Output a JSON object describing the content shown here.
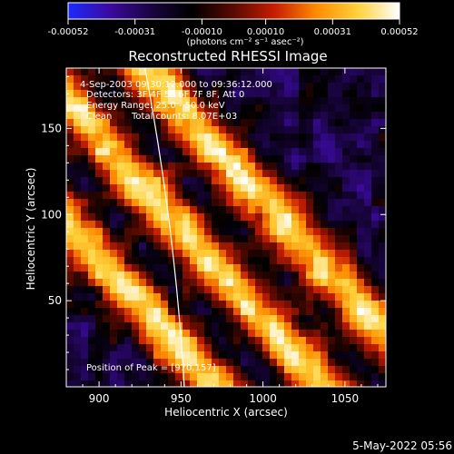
{
  "chart_data": {
    "type": "heatmap",
    "title": "Reconstructed RHESSI Image",
    "xlabel": "Heliocentric X (arcsec)",
    "ylabel": "Heliocentric Y (arcsec)",
    "xlim": [
      880,
      1075
    ],
    "ylim": [
      0,
      185
    ],
    "x_ticks": [
      "900",
      "950",
      "1000",
      "1050"
    ],
    "x_tick_values": [
      900,
      950,
      1000,
      1050
    ],
    "y_ticks": [
      "50",
      "100",
      "150"
    ],
    "y_tick_values": [
      50,
      100,
      150
    ],
    "colorbar": {
      "ticks": [
        "-0.00052",
        "-0.00031",
        "-0.00010",
        "0.00010",
        "0.00031",
        "0.00052"
      ],
      "tick_values": [
        -0.00052,
        -0.00031,
        -0.0001,
        0.0001,
        0.00031,
        0.00052
      ],
      "range": [
        -0.00052,
        0.00052
      ],
      "unit_label": "(photons cm⁻² s⁻¹ asec⁻²)",
      "colors": [
        "#1b2bff",
        "#3a0aa0",
        "#1a0440",
        "#000000",
        "#5a0a00",
        "#c81e00",
        "#ff8c00",
        "#ffd23c",
        "#ffffff"
      ]
    },
    "annotations": {
      "time_range": "4-Sep-2003 09:30:12.000 to 09:36:12.000",
      "detectors": "Detectors: 3F 4F 5F 6F 7F 8F, Att 0",
      "energy_range": "Energy Range: 25.0 - 50.0 keV",
      "clean_label": "Clean",
      "total_counts": "Total counts: 8.07E+03",
      "peak": "Position of Peak = [970,157]"
    },
    "features": {
      "pattern": "diagonal stripes from upper-left to lower-right alternating bright (orange/yellow) and dim (purple/blue)",
      "bright_band_centers_offset": [
        -85,
        -15,
        55
      ],
      "stripe_direction": "descending to the right",
      "limb_arc": "white solar-limb arc from top (~x 928) curving to bottom (~x 952)",
      "peak_position": [
        970,
        157
      ]
    },
    "footer_timestamp": "5-May-2022 05:56"
  }
}
